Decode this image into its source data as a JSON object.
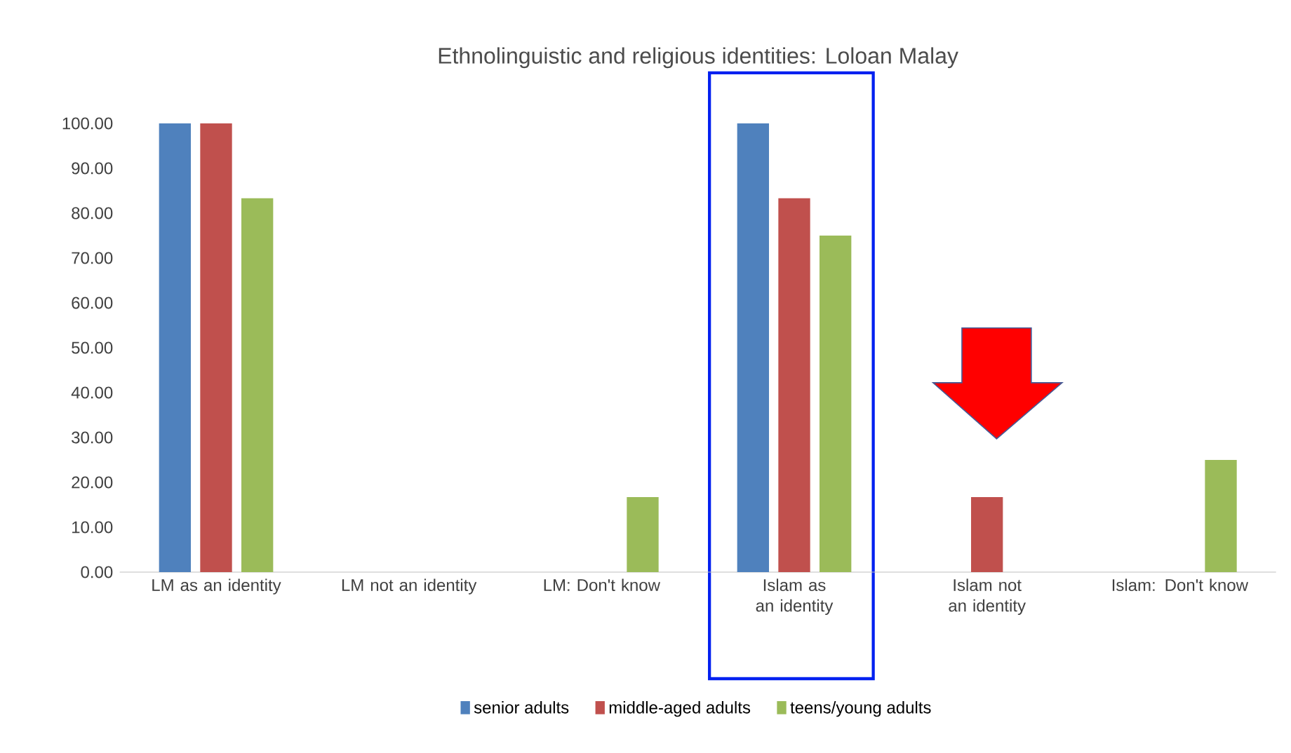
{
  "chart_data": {
    "type": "bar",
    "title": "Ethnolinguistic and religious identities: Loloan Malay",
    "categories": [
      "LM  as an identity",
      "LM not an identity",
      "LM: Don't know",
      "Islam as an identity",
      "Islam not an identity",
      "Islam: Don't know"
    ],
    "series": [
      {
        "name": "senior adults",
        "color": "#4f81bd",
        "values": [
          100,
          0,
          0,
          100,
          0,
          0
        ]
      },
      {
        "name": "middle-aged adults",
        "color": "#c0504d",
        "values": [
          100,
          0,
          0,
          83.3,
          16.7,
          0
        ]
      },
      {
        "name": "teens/young adults",
        "color": "#9bbb59",
        "values": [
          83.3,
          0,
          16.7,
          75,
          0,
          25
        ]
      }
    ],
    "ylim": [
      0,
      100
    ],
    "yticks": [
      {
        "value": 0,
        "label": "0.00"
      },
      {
        "value": 10,
        "label": "10.00"
      },
      {
        "value": 20,
        "label": "20.00"
      },
      {
        "value": 30,
        "label": "30.00"
      },
      {
        "value": 40,
        "label": "40.00"
      },
      {
        "value": 50,
        "label": "50.00"
      },
      {
        "value": 60,
        "label": "60.00"
      },
      {
        "value": 70,
        "label": "70.00"
      },
      {
        "value": 80,
        "label": "80.00"
      },
      {
        "value": 90,
        "label": "90.00"
      },
      {
        "value": 100,
        "label": "100.00"
      }
    ],
    "grid": false,
    "legend": "bottom"
  }
}
